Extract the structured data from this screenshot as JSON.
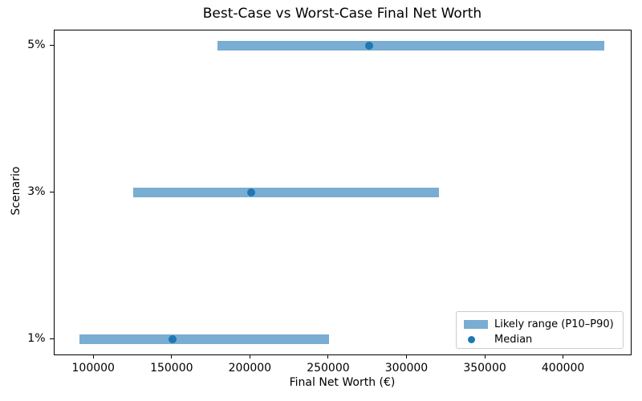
{
  "chart_data": {
    "type": "bar",
    "subtype": "horizontal-range-bars-with-median-dots",
    "title": "Best-Case vs Worst-Case Final Net Worth",
    "xlabel": "Final Net Worth (€)",
    "ylabel": "Scenario",
    "categories": [
      "1%",
      "3%",
      "5%"
    ],
    "rows_top_to_bottom": [
      {
        "scenario": "5%",
        "p10": 179100,
        "median": 276100,
        "p90": 426100
      },
      {
        "scenario": "3%",
        "p10": 125500,
        "median": 200700,
        "p90": 321000
      },
      {
        "scenario": "1%",
        "p10": 91200,
        "median": 150800,
        "p90": 250400
      }
    ],
    "x_ticks": [
      100000,
      150000,
      200000,
      250000,
      300000,
      350000,
      400000
    ],
    "xlim": [
      74500,
      443500
    ],
    "grid": false,
    "legend": {
      "position": "lower right",
      "items": [
        {
          "label": "Likely range (P10–P90)",
          "marker": "patch",
          "color": "#79add2"
        },
        {
          "label": "Median",
          "marker": "dot",
          "color": "#1f77b4"
        }
      ]
    },
    "colors": {
      "range_bar": "#79add2",
      "median_dot": "#1f77b4",
      "spine": "#000000",
      "background": "#ffffff",
      "legend_border": "#cccccc"
    }
  }
}
